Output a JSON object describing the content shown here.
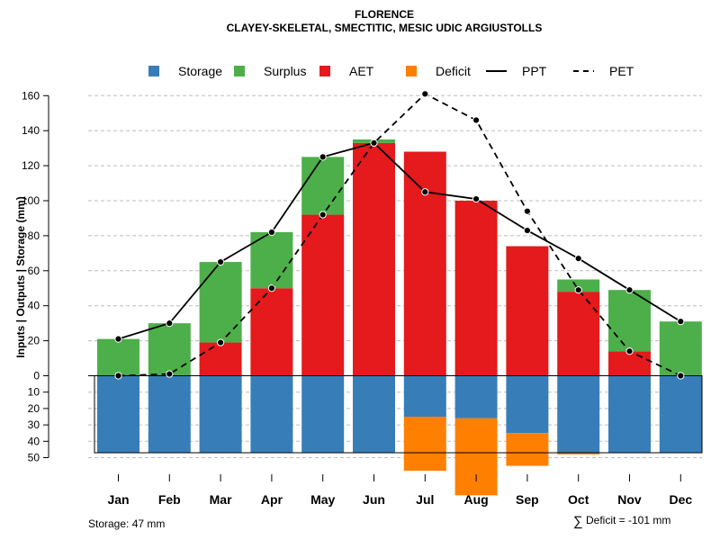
{
  "chart_data": {
    "type": "bar",
    "title": "FLORENCE",
    "subtitle": "CLAYEY-SKELETAL, SMECTITIC, MESIC UDIC ARGIUSTOLLS",
    "ylabel": "Inputs | Outputs | Storage    (mm)",
    "categories": [
      "Jan",
      "Feb",
      "Mar",
      "Apr",
      "May",
      "Jun",
      "Jul",
      "Aug",
      "Sep",
      "Oct",
      "Nov",
      "Dec"
    ],
    "ylim_upper": [
      0,
      170
    ],
    "ylim_lower": [
      0,
      50
    ],
    "yticks_upper": [
      0,
      20,
      40,
      60,
      80,
      100,
      120,
      140,
      160
    ],
    "yticks_lower": [
      0,
      10,
      20,
      30,
      40,
      50
    ],
    "grid": true,
    "legend_position": "top",
    "legend": [
      {
        "name": "Storage",
        "kind": "box",
        "color": "#377EB8"
      },
      {
        "name": "Surplus",
        "kind": "box",
        "color": "#4DAF4A"
      },
      {
        "name": "AET",
        "kind": "box",
        "color": "#E41A1C"
      },
      {
        "name": "Deficit",
        "kind": "box",
        "color": "#FF7F00"
      },
      {
        "name": "PPT",
        "kind": "solid-line",
        "color": "#000000"
      },
      {
        "name": "PET",
        "kind": "dashed-line",
        "color": "#000000"
      }
    ],
    "series": {
      "AET": [
        0,
        0,
        19,
        50,
        92,
        133,
        128,
        100,
        74,
        48,
        14,
        0
      ],
      "Surplus": [
        21,
        30,
        46,
        32,
        33,
        2,
        0,
        0,
        0,
        7,
        35,
        31
      ],
      "PPT": [
        21,
        30,
        65,
        82,
        125,
        133,
        105,
        101,
        83,
        67,
        49,
        31
      ],
      "PET": [
        0,
        1,
        19,
        50,
        92,
        133,
        161,
        146,
        94,
        49,
        14,
        0
      ],
      "Storage": [
        47,
        47,
        47,
        47,
        47,
        47,
        25,
        26,
        35,
        47,
        47,
        47
      ],
      "Deficit": [
        0,
        0,
        0,
        0,
        0,
        0,
        33,
        47,
        20,
        1,
        0,
        0
      ]
    },
    "storage_capacity": 47
  },
  "footer": {
    "storage_label": "Storage: 47 mm",
    "deficit_symbol": "∑",
    "deficit_label": "Deficit = -101 mm"
  }
}
